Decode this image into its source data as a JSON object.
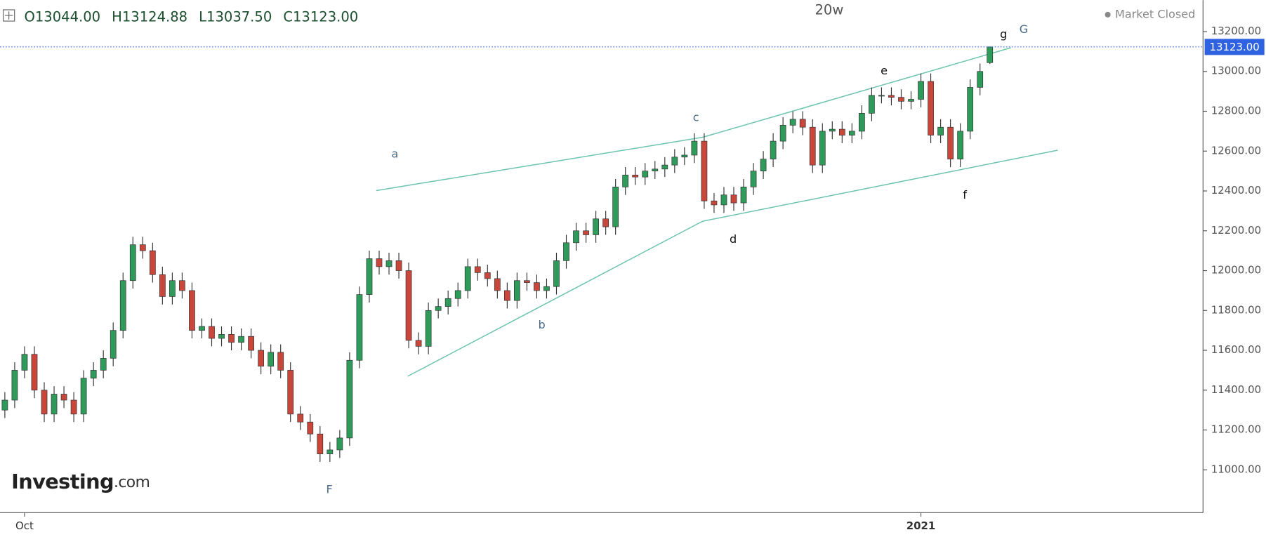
{
  "chart_data": {
    "type": "candlestick",
    "title": "20w",
    "status": "Market Closed",
    "logo": {
      "name": "Investing",
      "suffix": ".com"
    },
    "header_items": [
      {
        "key": "O",
        "value": "13044.00"
      },
      {
        "key": "H",
        "value": "13124.88"
      },
      {
        "key": "L",
        "value": "13037.50"
      },
      {
        "key": "C",
        "value": "13123.00"
      }
    ],
    "current_price": {
      "value": 13123,
      "label": "13123.00"
    },
    "annotations": [
      "a",
      "b",
      "c",
      "d",
      "e",
      "f",
      "g",
      "G",
      "F"
    ],
    "up_color": "#2e9b5a",
    "down_color": "#c9473a",
    "open": [
      11300,
      11350,
      11500,
      11580,
      11400,
      11280,
      11380,
      11350,
      11280,
      11460,
      11500,
      11560,
      11700,
      11950,
      12130,
      12100,
      11980,
      11870,
      11950,
      11900,
      11700,
      11720,
      11660,
      11680,
      11640,
      11670,
      11600,
      11520,
      11590,
      11500,
      11280,
      11240,
      11180,
      11080,
      11100,
      11160,
      11550,
      11880,
      12060,
      12020,
      12050,
      12000,
      11650,
      11620,
      11800,
      11820,
      11860,
      11900,
      12020,
      11990,
      11960,
      11900,
      11850,
      11950,
      11940,
      11900,
      11920,
      12050,
      12140,
      12200,
      12180,
      12260,
      12220,
      12420,
      12480,
      12470,
      12500,
      12510,
      12530,
      12570,
      12580,
      12650,
      12350,
      12330,
      12380,
      12340,
      12420,
      12500,
      12560,
      12650,
      12730,
      12760,
      12720,
      12530,
      12700,
      12710,
      12680,
      12700,
      12790,
      12880,
      12880,
      12870,
      12850,
      12860,
      12950,
      12680,
      12720,
      12560,
      12700,
      12920,
      13044
    ],
    "high": [
      11390,
      11540,
      11620,
      11620,
      11440,
      11420,
      11420,
      11390,
      11500,
      11540,
      11600,
      11740,
      11990,
      12170,
      12170,
      12140,
      12020,
      11990,
      11990,
      11940,
      11760,
      11760,
      11720,
      11720,
      11710,
      11710,
      11640,
      11630,
      11630,
      11540,
      11320,
      11280,
      11220,
      11140,
      11200,
      11590,
      11920,
      12100,
      12100,
      12090,
      12090,
      12040,
      11690,
      11840,
      11860,
      11900,
      11940,
      12060,
      12060,
      12030,
      12000,
      11940,
      11990,
      11990,
      11980,
      11960,
      12090,
      12180,
      12240,
      12240,
      12300,
      12300,
      12460,
      12520,
      12520,
      12540,
      12550,
      12570,
      12610,
      12620,
      12690,
      12690,
      12390,
      12420,
      12420,
      12460,
      12540,
      12600,
      12690,
      12770,
      12800,
      12800,
      12760,
      12740,
      12750,
      12750,
      12740,
      12830,
      12920,
      12920,
      12920,
      12910,
      12900,
      12990,
      12990,
      12760,
      12760,
      12740,
      12960,
      13040,
      13124.88
    ],
    "low": [
      11260,
      11310,
      11460,
      11360,
      11240,
      11240,
      11310,
      11240,
      11240,
      11420,
      11460,
      11520,
      11660,
      11910,
      12060,
      11940,
      11830,
      11830,
      11860,
      11660,
      11660,
      11620,
      11620,
      11600,
      11600,
      11560,
      11480,
      11480,
      11460,
      11240,
      11200,
      11140,
      11040,
      11040,
      11060,
      11120,
      11510,
      11840,
      11980,
      11980,
      11960,
      11610,
      11580,
      11580,
      11760,
      11780,
      11820,
      11860,
      11950,
      11920,
      11860,
      11810,
      11810,
      11900,
      11860,
      11860,
      11880,
      12010,
      12100,
      12140,
      12140,
      12180,
      12180,
      12380,
      12430,
      12430,
      12460,
      12470,
      12490,
      12530,
      12540,
      12310,
      12290,
      12290,
      12300,
      12300,
      12380,
      12460,
      12520,
      12610,
      12690,
      12680,
      12490,
      12490,
      12660,
      12640,
      12640,
      12660,
      12750,
      12840,
      12830,
      12810,
      12810,
      12820,
      12640,
      12640,
      12520,
      12520,
      12660,
      12880,
      13037.5
    ],
    "close": [
      11350,
      11500,
      11580,
      11400,
      11280,
      11380,
      11350,
      11280,
      11460,
      11500,
      11560,
      11700,
      11950,
      12130,
      12100,
      11980,
      11870,
      11950,
      11900,
      11700,
      11720,
      11660,
      11680,
      11640,
      11670,
      11600,
      11520,
      11590,
      11500,
      11280,
      11240,
      11180,
      11080,
      11100,
      11160,
      11550,
      11880,
      12060,
      12020,
      12050,
      12000,
      11650,
      11620,
      11800,
      11820,
      11860,
      11900,
      12020,
      11990,
      11960,
      11900,
      11850,
      11950,
      11940,
      11900,
      11920,
      12050,
      12140,
      12200,
      12180,
      12260,
      12220,
      12420,
      12480,
      12470,
      12500,
      12510,
      12530,
      12570,
      12580,
      12650,
      12350,
      12330,
      12380,
      12340,
      12420,
      12500,
      12560,
      12650,
      12730,
      12760,
      12720,
      12530,
      12700,
      12710,
      12680,
      12700,
      12790,
      12880,
      12880,
      12870,
      12850,
      12860,
      12950,
      12680,
      12720,
      12560,
      12700,
      12920,
      13000,
      13123
    ],
    "ylim": [
      10785,
      13358
    ],
    "yticks": [
      {
        "value": 11000,
        "label": "11000.00"
      },
      {
        "value": 11200,
        "label": "11200.00"
      },
      {
        "value": 11400,
        "label": "11400.00"
      },
      {
        "value": 11600,
        "label": "11600.00"
      },
      {
        "value": 11800,
        "label": "11800.00"
      },
      {
        "value": 12000,
        "label": "12000.00"
      },
      {
        "value": 12200,
        "label": "12200.00"
      },
      {
        "value": 12400,
        "label": "12400.00"
      },
      {
        "value": 12600,
        "label": "12600.00"
      },
      {
        "value": 12800,
        "label": "12800.00"
      },
      {
        "value": 13000,
        "label": "13000.00"
      },
      {
        "value": 13200,
        "label": "13200.00"
      }
    ],
    "xticks": [
      {
        "value": 2,
        "label": "Oct"
      },
      {
        "value": 93,
        "label": "2021"
      }
    ]
  }
}
